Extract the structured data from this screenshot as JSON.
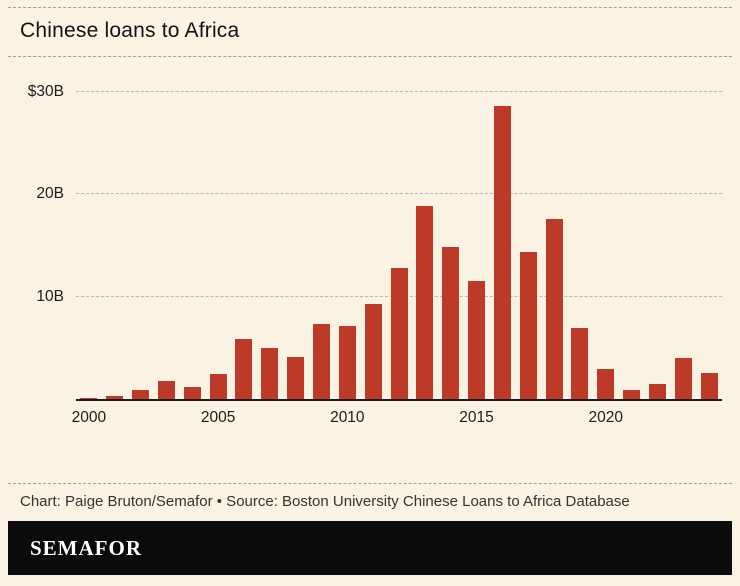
{
  "header": {
    "title": "Chinese loans to Africa"
  },
  "chart_data": {
    "type": "bar",
    "title": "Chinese loans to Africa",
    "unit": "USD billions",
    "bar_color": "#be3a28",
    "grid": "dashed horizontal gridlines, solid black baseline",
    "legend": "none",
    "ylim": [
      0,
      30
    ],
    "categories": [
      2000,
      2001,
      2002,
      2003,
      2004,
      2005,
      2006,
      2007,
      2008,
      2009,
      2010,
      2011,
      2012,
      2013,
      2014,
      2015,
      2016,
      2017,
      2018,
      2019,
      2020,
      2021,
      2022,
      2023,
      2024
    ],
    "values": [
      0.13,
      0.3,
      0.9,
      1.8,
      1.2,
      2.4,
      5.9,
      5.0,
      4.1,
      7.3,
      7.1,
      9.3,
      12.8,
      18.9,
      14.9,
      11.5,
      28.6,
      14.4,
      17.6,
      6.9,
      2.9,
      0.9,
      1.5,
      4.0,
      2.5
    ],
    "yticks": [
      {
        "value": 10,
        "label": "10B"
      },
      {
        "value": 20,
        "label": "20B"
      },
      {
        "value": 30,
        "label": "$30B"
      }
    ],
    "xticks": [
      {
        "index": 0,
        "label": "2000"
      },
      {
        "index": 5,
        "label": "2005"
      },
      {
        "index": 10,
        "label": "2010"
      },
      {
        "index": 15,
        "label": "2015"
      },
      {
        "index": 20,
        "label": "2020"
      }
    ]
  },
  "footer": {
    "credit": "Chart: Paige Bruton/Semafor • Source: Boston University Chinese Loans to Africa Database"
  },
  "brand": {
    "wordmark": "SEMAFOR"
  }
}
